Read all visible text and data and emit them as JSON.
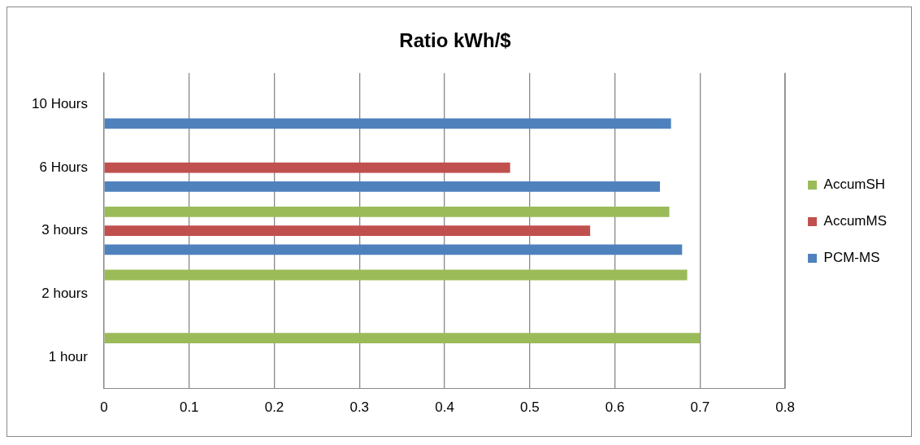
{
  "chart_data": {
    "type": "bar",
    "orientation": "horizontal",
    "title": "Ratio kWh/$",
    "categories": [
      "10 Hours",
      "6 Hours",
      "3 hours",
      "2 hours",
      "1 hour"
    ],
    "series": [
      {
        "name": "AccumSH",
        "color": "#9bbb59",
        "values": [
          null,
          null,
          0.664,
          0.685,
          0.7
        ]
      },
      {
        "name": "AccumMS",
        "color": "#c0504d",
        "values": [
          null,
          0.477,
          0.571,
          null,
          null
        ]
      },
      {
        "name": "PCM-MS",
        "color": "#4f81bd",
        "values": [
          0.666,
          0.653,
          0.679,
          null,
          null
        ]
      }
    ],
    "xlim": [
      0,
      0.8
    ],
    "xticks": [
      0,
      0.1,
      0.2,
      0.3,
      0.4,
      0.5,
      0.6,
      0.7,
      0.8
    ],
    "grid": "x",
    "legend": "right"
  }
}
